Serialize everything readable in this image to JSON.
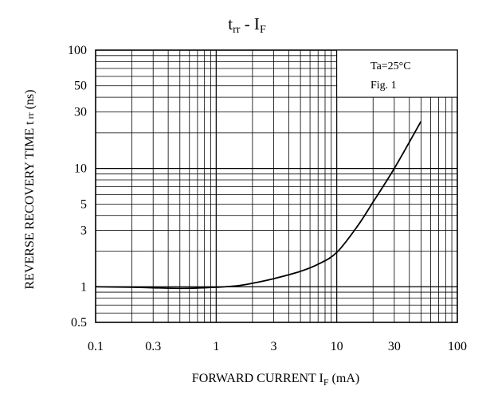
{
  "chart_data": {
    "type": "line",
    "title": {
      "main": "t",
      "sub": "rr",
      "mid": " - I",
      "sub2": "F"
    },
    "xlabel": {
      "main": "FORWARD CURRENT I",
      "sub": "F",
      "unit": "  (mA)"
    },
    "ylabel": {
      "main": "REVERSE RECOVERY TIME t",
      "sub": " rr",
      "unit": "  (ns)"
    },
    "x_scale": "log",
    "y_scale": "log",
    "xlim": [
      0.1,
      100
    ],
    "ylim": [
      0.5,
      100
    ],
    "x_ticks": [
      {
        "value": 0.1,
        "label": "0.1"
      },
      {
        "value": 0.3,
        "label": "0.3"
      },
      {
        "value": 1,
        "label": "1"
      },
      {
        "value": 3,
        "label": "3"
      },
      {
        "value": 10,
        "label": "10"
      },
      {
        "value": 30,
        "label": "30"
      },
      {
        "value": 100,
        "label": "100"
      }
    ],
    "y_ticks": [
      {
        "value": 0.5,
        "label": "0.5"
      },
      {
        "value": 1,
        "label": "1"
      },
      {
        "value": 3,
        "label": "3"
      },
      {
        "value": 5,
        "label": "5"
      },
      {
        "value": 10,
        "label": "10"
      },
      {
        "value": 30,
        "label": "30"
      },
      {
        "value": 50,
        "label": "50"
      },
      {
        "value": 100,
        "label": "100"
      }
    ],
    "grid": true,
    "annotations": [
      "Ta=25°C",
      "Fig. 1"
    ],
    "series": [
      {
        "x": [
          0.1,
          0.2,
          0.3,
          0.5,
          0.7,
          1,
          1.5,
          2,
          3,
          5,
          7,
          10,
          15,
          20,
          30,
          50
        ],
        "y": [
          1.0,
          0.99,
          0.98,
          0.97,
          0.975,
          0.99,
          1.02,
          1.07,
          1.17,
          1.35,
          1.55,
          1.95,
          3.3,
          5.2,
          10,
          25
        ]
      }
    ]
  }
}
